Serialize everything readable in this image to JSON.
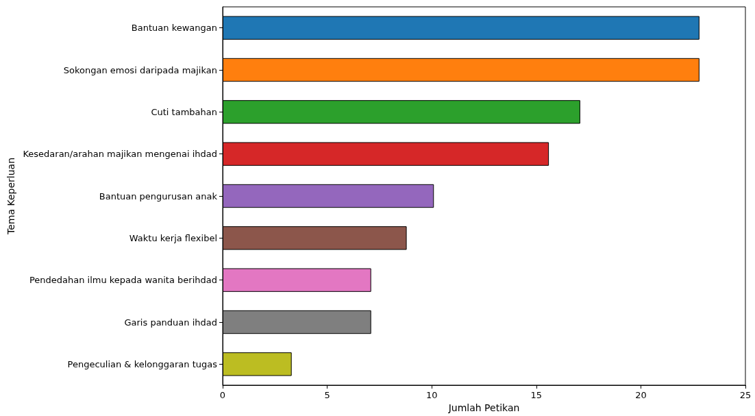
{
  "chart_data": {
    "type": "bar",
    "orientation": "horizontal",
    "xlabel": "Jumlah Petikan",
    "ylabel": "Tema Keperluan",
    "categories": [
      "Bantuan kewangan",
      "Sokongan emosi daripada majikan",
      "Cuti tambahan",
      "Kesedaran/arahan majikan mengenai ihdad",
      "Bantuan pengurusan anak",
      "Waktu kerja flexibel",
      "Pendedahan ilmu kepada wanita berihdad",
      "Garis panduan ihdad",
      "Pengeculian & kelonggaran tugas"
    ],
    "values": [
      22.8,
      22.8,
      17.1,
      15.6,
      10.1,
      8.8,
      7.1,
      7.1,
      3.3
    ],
    "colors": [
      "#1f77b4",
      "#ff7f0e",
      "#2ca02c",
      "#d62728",
      "#9467bd",
      "#8c564b",
      "#e377c2",
      "#7f7f7f",
      "#bcbd22"
    ],
    "xlim": [
      0,
      25
    ],
    "xticks": [
      0,
      5,
      10,
      15,
      20,
      25
    ],
    "grid": false
  }
}
